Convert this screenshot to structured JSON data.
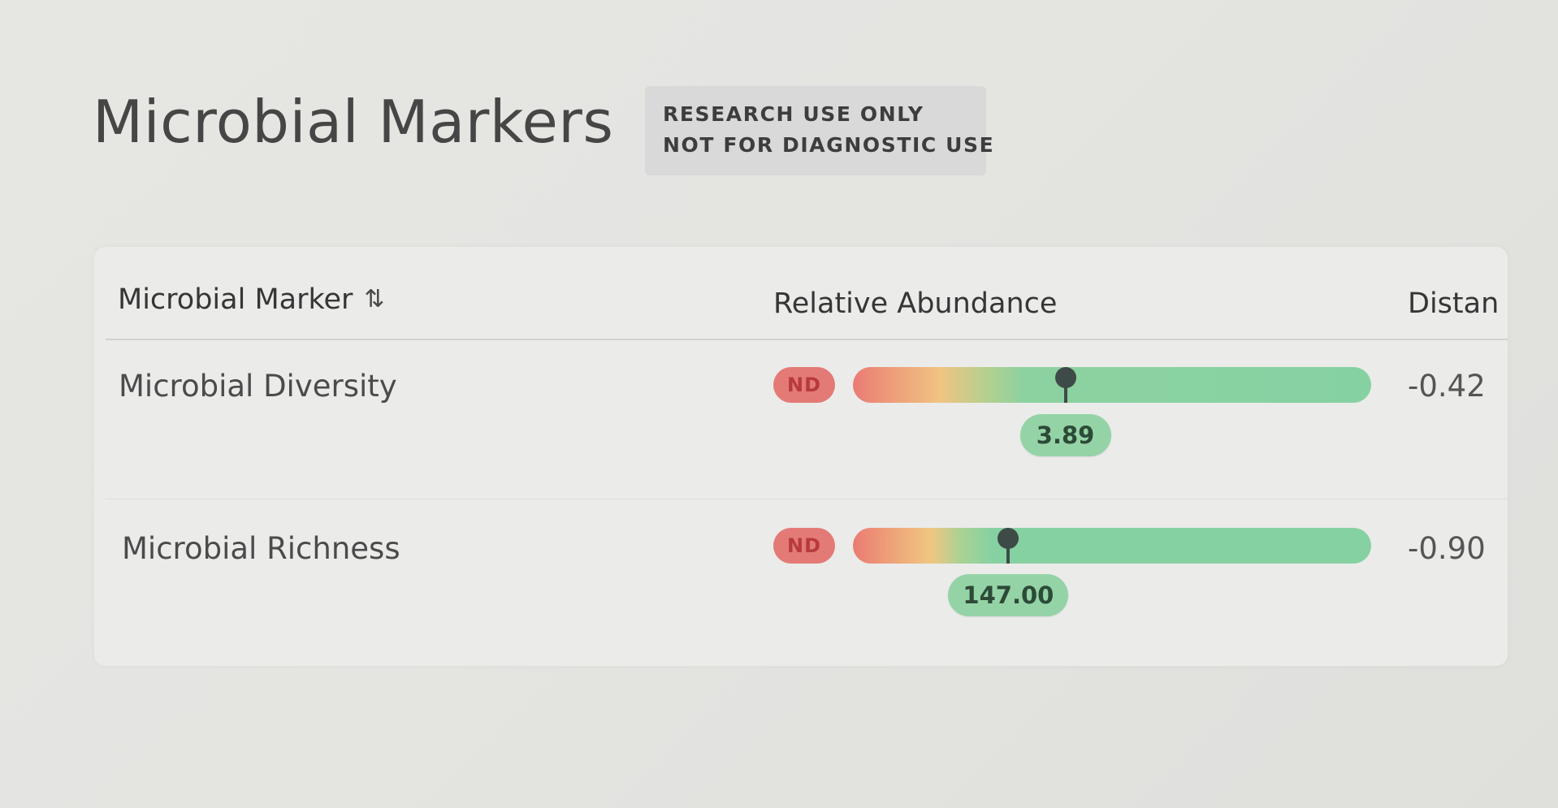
{
  "header": {
    "title": "Microbial Markers",
    "badge_line1": "RESEARCH USE ONLY",
    "badge_line2": "NOT FOR DIAGNOSTIC USE"
  },
  "table": {
    "columns": {
      "marker": "Microbial Marker",
      "sort_icon": "⇅",
      "abundance": "Relative Abundance",
      "distance": "Distan"
    },
    "rows": [
      {
        "name": "Microbial Diversity",
        "nd_label": "ND",
        "value": "3.89",
        "marker_position_fraction": 0.41,
        "distance": "-0.42"
      },
      {
        "name": "Microbial Richness",
        "nd_label": "ND",
        "value": "147.00",
        "marker_position_fraction": 0.3,
        "distance": "-0.90"
      }
    ]
  },
  "colors": {
    "nd_badge": "#e37a76",
    "range_low": "#ea7b74",
    "range_mid": "#f0c482",
    "range_good": "#86d1a2",
    "marker_pin": "#3e4a48"
  },
  "icons": {
    "sort": "sort-arrows-icon",
    "marker": "map-pin-icon"
  }
}
